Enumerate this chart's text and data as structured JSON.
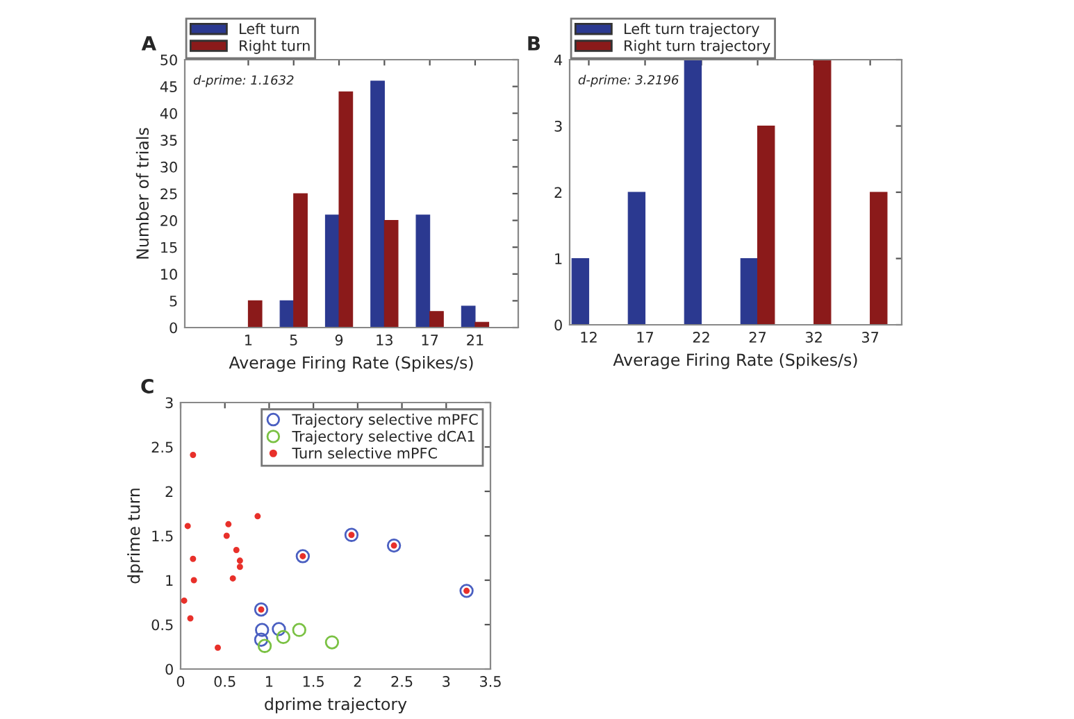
{
  "chart_data": [
    {
      "type": "bar",
      "title": "A",
      "xlabel": "Average Firing Rate (Spikes/s)",
      "ylabel": "Number of trials",
      "annotations": [
        "d-prime: 1.1632"
      ],
      "x": [
        1,
        5,
        9,
        13,
        17,
        21
      ],
      "series": [
        {
          "name": "Left turn",
          "color": "#2b3990",
          "values": [
            0,
            5,
            21,
            46,
            21,
            4
          ]
        },
        {
          "name": "Right turn",
          "color": "#8b1a1a",
          "values": [
            5,
            25,
            44,
            20,
            3,
            1
          ]
        }
      ],
      "xlim": [
        -4.6,
        24.8
      ],
      "xticks": [
        1,
        5,
        9,
        13,
        17,
        21
      ],
      "ylim": [
        0,
        50
      ],
      "yticks": [
        0,
        5,
        10,
        15,
        20,
        25,
        30,
        35,
        40,
        45,
        50
      ],
      "legend": "top left"
    },
    {
      "type": "bar",
      "title": "B",
      "xlabel": "Average Firing Rate (Spikes/s)",
      "annotations": [
        "d-prime: 3.2196"
      ],
      "x": [
        12,
        17,
        22,
        27,
        32,
        37
      ],
      "series": [
        {
          "name": "Left turn trajectory",
          "color": "#2b3990",
          "values": [
            1,
            2,
            4,
            1,
            0,
            0
          ]
        },
        {
          "name": "Right turn trajectory",
          "color": "#8b1a1a",
          "values": [
            0,
            0,
            0,
            3,
            4,
            2
          ]
        }
      ],
      "xlim": [
        10.3,
        39.8
      ],
      "xticks": [
        12,
        17,
        22,
        27,
        32,
        37
      ],
      "ylim": [
        0,
        4
      ],
      "yticks": [
        0,
        1,
        2,
        3,
        4
      ],
      "legend": "top left"
    },
    {
      "type": "scatter",
      "title": "C",
      "xlabel": "dprime trajectory",
      "ylabel": "dprime turn",
      "series": [
        {
          "name": "Trajectory selective mPFC",
          "color": "#4a5fc1",
          "marker": "circle",
          "x": [
            0.91,
            1.38,
            1.93,
            2.41,
            3.23,
            0.92,
            0.91,
            1.11
          ],
          "values": [
            0.67,
            1.27,
            1.51,
            1.39,
            0.88,
            0.44,
            0.33,
            0.45
          ]
        },
        {
          "name": "Trajectory selective dCA1",
          "color": "#7ac143",
          "marker": "circle",
          "x": [
            0.95,
            1.16,
            1.34,
            1.71
          ],
          "values": [
            0.26,
            0.36,
            0.44,
            0.3
          ]
        },
        {
          "name": "Turn selective mPFC",
          "color": "#e8302a",
          "marker": "point",
          "x": [
            0.14,
            0.08,
            0.54,
            0.52,
            0.87,
            0.63,
            0.67,
            0.67,
            0.14,
            0.15,
            0.59,
            0.04,
            0.11,
            0.42,
            0.91,
            1.38,
            1.93,
            2.41,
            3.23
          ],
          "values": [
            2.41,
            1.61,
            1.63,
            1.5,
            1.72,
            1.34,
            1.22,
            1.15,
            1.24,
            1.0,
            1.02,
            0.77,
            0.57,
            0.24,
            0.67,
            1.27,
            1.51,
            1.39,
            0.88
          ]
        }
      ],
      "xlim": [
        0,
        3.5
      ],
      "xticks": [
        0,
        0.5,
        1,
        1.5,
        2,
        2.5,
        3,
        3.5
      ],
      "ylim": [
        0,
        3
      ],
      "yticks": [
        0,
        0.5,
        1,
        1.5,
        2,
        2.5,
        3
      ],
      "legend": "top right"
    }
  ]
}
